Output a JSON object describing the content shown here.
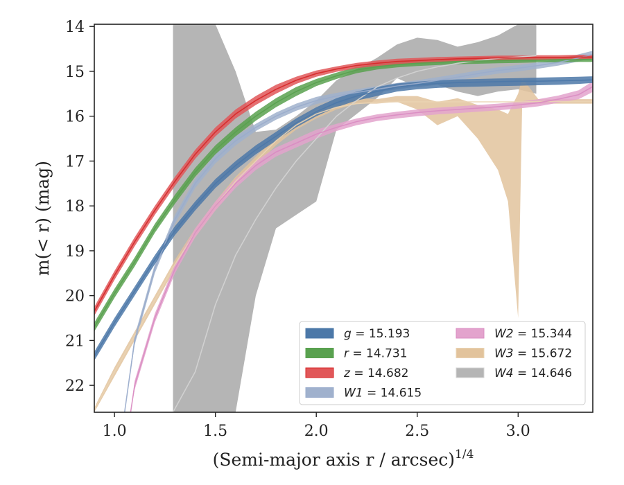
{
  "chart_data": {
    "type": "area",
    "xlabel": "(Semi-major axis r / arcsec)",
    "xlabel_sup": "1/4",
    "ylabel": "m(< r) (mag)",
    "xlim": [
      0.9,
      3.37
    ],
    "ylim": [
      22.6,
      13.95
    ],
    "y_inverted": true,
    "xticks": [
      1.0,
      1.5,
      2.0,
      2.5,
      3.0
    ],
    "xtick_labels": [
      "1.0",
      "1.5",
      "2.0",
      "2.5",
      "3.0"
    ],
    "yticks": [
      14,
      15,
      16,
      17,
      18,
      19,
      20,
      21,
      22
    ],
    "ytick_labels": [
      "14",
      "15",
      "16",
      "17",
      "18",
      "19",
      "20",
      "21",
      "22"
    ],
    "grid": false,
    "legend_position": "lower-right",
    "series": [
      {
        "name": "g",
        "legend_label": "g = 15.193",
        "color": "#4c78a8",
        "line_color": "#4c78a8",
        "x": [
          0.9,
          1.0,
          1.1,
          1.2,
          1.3,
          1.4,
          1.5,
          1.6,
          1.7,
          1.8,
          1.9,
          2.0,
          2.1,
          2.2,
          2.3,
          2.4,
          2.5,
          2.6,
          2.7,
          2.8,
          2.9,
          3.0,
          3.1,
          3.2,
          3.3,
          3.37
        ],
        "y": [
          21.35,
          20.6,
          19.9,
          19.2,
          18.55,
          18.0,
          17.5,
          17.1,
          16.75,
          16.45,
          16.15,
          15.9,
          15.7,
          15.55,
          15.45,
          15.35,
          15.3,
          15.27,
          15.25,
          15.24,
          15.23,
          15.22,
          15.22,
          15.21,
          15.2,
          15.19
        ],
        "upper": [
          21.45,
          20.7,
          20.0,
          19.3,
          18.65,
          18.1,
          17.6,
          17.2,
          16.85,
          16.55,
          16.25,
          16.0,
          15.8,
          15.65,
          15.55,
          15.45,
          15.4,
          15.37,
          15.35,
          15.34,
          15.33,
          15.32,
          15.31,
          15.3,
          15.28,
          15.26
        ],
        "lower": [
          21.25,
          20.5,
          19.8,
          19.1,
          18.45,
          17.9,
          17.4,
          17.0,
          16.65,
          16.35,
          16.05,
          15.8,
          15.6,
          15.45,
          15.35,
          15.27,
          15.23,
          15.2,
          15.18,
          15.17,
          15.16,
          15.15,
          15.14,
          15.13,
          15.12,
          15.11
        ]
      },
      {
        "name": "r",
        "legend_label": "r = 14.731",
        "color": "#59a14f",
        "line_color": "#59a14f",
        "x": [
          0.9,
          1.0,
          1.1,
          1.2,
          1.3,
          1.4,
          1.5,
          1.6,
          1.7,
          1.8,
          1.9,
          2.0,
          2.1,
          2.2,
          2.3,
          2.4,
          2.5,
          2.6,
          2.7,
          2.8,
          2.9,
          3.0,
          3.1,
          3.2,
          3.3,
          3.37
        ],
        "y": [
          20.7,
          19.95,
          19.25,
          18.5,
          17.85,
          17.25,
          16.75,
          16.35,
          16.0,
          15.7,
          15.45,
          15.25,
          15.1,
          14.97,
          14.9,
          14.85,
          14.82,
          14.8,
          14.78,
          14.77,
          14.76,
          14.75,
          14.75,
          14.74,
          14.74,
          14.73
        ],
        "upper": [
          20.8,
          20.05,
          19.35,
          18.6,
          17.95,
          17.35,
          16.85,
          16.45,
          16.1,
          15.8,
          15.55,
          15.33,
          15.17,
          15.04,
          14.96,
          14.91,
          14.88,
          14.86,
          14.84,
          14.83,
          14.82,
          14.81,
          14.8,
          14.8,
          14.79,
          14.79
        ],
        "lower": [
          20.6,
          19.85,
          19.15,
          18.4,
          17.75,
          17.15,
          16.65,
          16.25,
          15.9,
          15.6,
          15.35,
          15.17,
          15.03,
          14.9,
          14.84,
          14.79,
          14.76,
          14.74,
          14.72,
          14.71,
          14.7,
          14.7,
          14.69,
          14.69,
          14.68,
          14.68
        ]
      },
      {
        "name": "z",
        "legend_label": "z = 14.682",
        "color": "#e15759",
        "line_color": "#d62728",
        "x": [
          0.9,
          1.0,
          1.1,
          1.2,
          1.3,
          1.4,
          1.5,
          1.6,
          1.7,
          1.8,
          1.9,
          2.0,
          2.1,
          2.2,
          2.3,
          2.4,
          2.5,
          2.6,
          2.7,
          2.8,
          2.9,
          3.0,
          3.1,
          3.2,
          3.3,
          3.37
        ],
        "y": [
          20.35,
          19.55,
          18.8,
          18.1,
          17.45,
          16.85,
          16.35,
          15.95,
          15.65,
          15.4,
          15.2,
          15.05,
          14.95,
          14.87,
          14.82,
          14.78,
          14.76,
          14.74,
          14.72,
          14.71,
          14.7,
          14.7,
          14.69,
          14.69,
          14.68,
          14.68
        ],
        "upper": [
          20.45,
          19.65,
          18.9,
          18.2,
          17.55,
          16.95,
          16.45,
          16.05,
          15.75,
          15.5,
          15.28,
          15.12,
          15.01,
          14.93,
          14.88,
          14.84,
          14.81,
          14.79,
          14.77,
          14.76,
          14.75,
          14.75,
          14.74,
          14.74,
          14.73,
          14.73
        ],
        "lower": [
          20.25,
          19.45,
          18.7,
          18.0,
          17.35,
          16.75,
          16.25,
          15.85,
          15.55,
          15.3,
          15.12,
          14.98,
          14.89,
          14.81,
          14.76,
          14.72,
          14.7,
          14.68,
          14.67,
          14.66,
          14.65,
          14.65,
          14.64,
          14.64,
          14.63,
          14.63
        ]
      },
      {
        "name": "W1",
        "legend_label": "W1 = 14.615",
        "color": "#a0b1cd",
        "line_color": "#9aaccc",
        "x": [
          1.05,
          1.1,
          1.2,
          1.3,
          1.4,
          1.5,
          1.6,
          1.7,
          1.8,
          1.9,
          2.0,
          2.1,
          2.2,
          2.3,
          2.4,
          2.5,
          2.6,
          2.7,
          2.8,
          2.9,
          3.0,
          3.1,
          3.2,
          3.3,
          3.37
        ],
        "y": [
          22.6,
          21.0,
          19.4,
          18.3,
          17.5,
          16.95,
          16.55,
          16.25,
          16.0,
          15.8,
          15.65,
          15.55,
          15.47,
          15.4,
          15.33,
          15.27,
          15.2,
          15.13,
          15.05,
          14.98,
          14.93,
          14.87,
          14.8,
          14.7,
          14.62
        ],
        "upper": [
          22.6,
          21.1,
          19.5,
          18.4,
          17.6,
          17.05,
          16.65,
          16.33,
          16.08,
          15.88,
          15.73,
          15.62,
          15.54,
          15.47,
          15.4,
          15.34,
          15.27,
          15.2,
          15.12,
          15.05,
          15.0,
          14.94,
          14.87,
          14.78,
          14.7
        ],
        "lower": [
          22.6,
          20.9,
          19.3,
          18.2,
          17.4,
          16.85,
          16.45,
          16.17,
          15.92,
          15.72,
          15.57,
          15.48,
          15.4,
          15.33,
          15.26,
          15.2,
          15.13,
          15.06,
          14.98,
          14.91,
          14.86,
          14.8,
          14.73,
          14.62,
          14.54
        ]
      },
      {
        "name": "W2",
        "legend_label": "W2 = 15.344",
        "color": "#e3a3cd",
        "line_color": "#d98cc2",
        "x": [
          1.08,
          1.1,
          1.2,
          1.3,
          1.4,
          1.5,
          1.6,
          1.7,
          1.8,
          1.9,
          2.0,
          2.1,
          2.2,
          2.3,
          2.4,
          2.5,
          2.6,
          2.7,
          2.8,
          2.9,
          3.0,
          3.1,
          3.2,
          3.3,
          3.37
        ],
        "y": [
          22.6,
          22.0,
          20.5,
          19.4,
          18.6,
          18.0,
          17.5,
          17.1,
          16.8,
          16.6,
          16.4,
          16.25,
          16.12,
          16.03,
          15.97,
          15.92,
          15.88,
          15.85,
          15.82,
          15.79,
          15.75,
          15.7,
          15.62,
          15.52,
          15.34
        ],
        "upper": [
          22.6,
          22.1,
          20.6,
          19.5,
          18.7,
          18.1,
          17.6,
          17.2,
          16.9,
          16.7,
          16.5,
          16.33,
          16.2,
          16.11,
          16.05,
          16.0,
          15.96,
          15.93,
          15.9,
          15.87,
          15.83,
          15.78,
          15.7,
          15.62,
          15.46
        ],
        "lower": [
          22.6,
          21.9,
          20.4,
          19.3,
          18.5,
          17.9,
          17.4,
          17.0,
          16.7,
          16.5,
          16.3,
          16.17,
          16.05,
          15.96,
          15.9,
          15.85,
          15.81,
          15.78,
          15.75,
          15.72,
          15.68,
          15.62,
          15.54,
          15.42,
          15.22
        ]
      },
      {
        "name": "W3",
        "legend_label": "W3 = 15.672",
        "color": "#e2c39c",
        "line_color": "#ead4b4",
        "x": [
          0.9,
          1.0,
          1.1,
          1.2,
          1.3,
          1.4,
          1.5,
          1.6,
          1.7,
          1.8,
          1.9,
          2.0,
          2.1,
          2.2,
          2.3,
          2.4,
          2.5,
          2.6,
          2.7,
          2.8,
          2.9,
          2.95,
          3.0,
          3.02,
          3.1,
          3.2,
          3.3,
          3.37
        ],
        "y": [
          22.55,
          21.7,
          20.9,
          20.1,
          19.3,
          18.6,
          18.0,
          17.45,
          17.0,
          16.55,
          16.2,
          15.95,
          15.8,
          15.72,
          15.69,
          15.68,
          15.68,
          15.68,
          15.68,
          15.68,
          15.68,
          15.68,
          15.68,
          15.68,
          15.67,
          15.67,
          15.67,
          15.67
        ],
        "upper": [
          22.6,
          21.8,
          21.0,
          20.2,
          19.4,
          18.7,
          18.1,
          17.55,
          17.1,
          16.65,
          16.3,
          16.05,
          15.85,
          15.72,
          15.72,
          15.68,
          15.85,
          16.2,
          16.0,
          16.5,
          17.2,
          17.9,
          20.5,
          15.75,
          15.72,
          15.72,
          15.72,
          15.72
        ],
        "lower": [
          22.5,
          21.6,
          20.8,
          20.0,
          19.2,
          18.5,
          17.9,
          17.35,
          16.9,
          16.45,
          16.1,
          15.85,
          15.75,
          15.6,
          15.62,
          15.55,
          15.55,
          15.68,
          15.6,
          15.75,
          15.85,
          15.95,
          15.5,
          15.15,
          15.62,
          15.62,
          15.62,
          15.62
        ]
      },
      {
        "name": "W4",
        "legend_label": "W4 = 14.646",
        "color": "#b5b5b5",
        "line_color": "#d4d4d4",
        "x": [
          1.29,
          1.4,
          1.5,
          1.6,
          1.7,
          1.8,
          1.9,
          2.0,
          2.1,
          2.2,
          2.3,
          2.4,
          2.5,
          2.6,
          2.7,
          2.8,
          2.9,
          3.0,
          3.09
        ],
        "y": [
          22.6,
          21.7,
          20.2,
          19.1,
          18.3,
          17.6,
          17.0,
          16.5,
          16.0,
          15.65,
          15.35,
          15.15,
          15.0,
          14.9,
          14.82,
          14.76,
          14.71,
          14.68,
          14.65
        ],
        "upper": [
          22.6,
          22.6,
          22.6,
          22.6,
          20.0,
          18.5,
          18.2,
          17.9,
          16.3,
          15.95,
          15.6,
          15.15,
          15.35,
          15.3,
          15.45,
          15.55,
          15.45,
          15.4,
          15.5
        ],
        "lower": [
          13.95,
          13.95,
          13.95,
          15.0,
          16.35,
          16.3,
          16.0,
          15.65,
          15.2,
          14.95,
          14.7,
          14.4,
          14.25,
          14.3,
          14.45,
          14.35,
          14.2,
          13.95,
          13.95
        ]
      }
    ]
  }
}
